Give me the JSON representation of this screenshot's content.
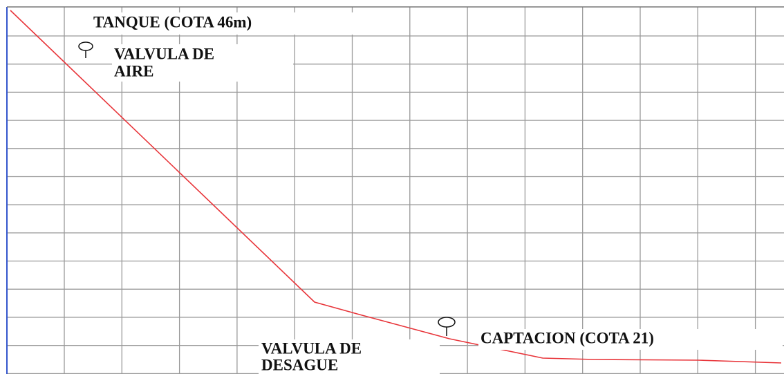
{
  "labels": {
    "tank": "TANQUE (COTA 46m)",
    "air_valve": [
      "VALVULA DE",
      "AIRE"
    ],
    "intake": "CAPTACION (COTA 21)",
    "drain_valve": [
      "VALVULA DE",
      "DESAGUE"
    ]
  }
}
